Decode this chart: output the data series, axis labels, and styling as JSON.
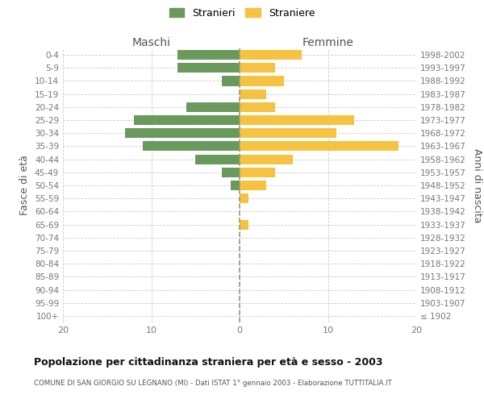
{
  "age_groups": [
    "0-4",
    "5-9",
    "10-14",
    "15-19",
    "20-24",
    "25-29",
    "30-34",
    "35-39",
    "40-44",
    "45-49",
    "50-54",
    "55-59",
    "60-64",
    "65-69",
    "70-74",
    "75-79",
    "80-84",
    "85-89",
    "90-94",
    "95-99",
    "100+"
  ],
  "birth_years": [
    "1998-2002",
    "1993-1997",
    "1988-1992",
    "1983-1987",
    "1978-1982",
    "1973-1977",
    "1968-1972",
    "1963-1967",
    "1958-1962",
    "1953-1957",
    "1948-1952",
    "1943-1947",
    "1938-1942",
    "1933-1937",
    "1928-1932",
    "1923-1927",
    "1918-1922",
    "1913-1917",
    "1908-1912",
    "1903-1907",
    "≤ 1902"
  ],
  "maschi": [
    7,
    7,
    2,
    0,
    6,
    12,
    13,
    11,
    5,
    2,
    1,
    0,
    0,
    0,
    0,
    0,
    0,
    0,
    0,
    0,
    0
  ],
  "femmine": [
    7,
    4,
    5,
    3,
    4,
    13,
    11,
    18,
    6,
    4,
    3,
    1,
    0,
    1,
    0,
    0,
    0,
    0,
    0,
    0,
    0
  ],
  "maschi_color": "#6a9a5b",
  "femmine_color": "#f5c242",
  "background_color": "#ffffff",
  "grid_color": "#cccccc",
  "title": "Popolazione per cittadinanza straniera per età e sesso - 2003",
  "subtitle": "COMUNE DI SAN GIORGIO SU LEGNANO (MI) - Dati ISTAT 1° gennaio 2003 - Elaborazione TUTTITALIA.IT",
  "xlabel_left": "Maschi",
  "xlabel_right": "Femmine",
  "ylabel_left": "Fasce di età",
  "ylabel_right": "Anni di nascita",
  "xlim": 20,
  "legend_stranieri": "Stranieri",
  "legend_straniere": "Straniere"
}
